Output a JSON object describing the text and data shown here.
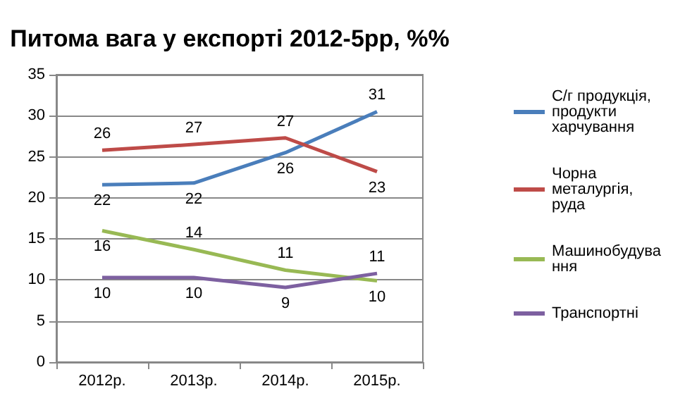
{
  "chart_data": {
    "type": "line",
    "title": "Питома вага у експорті 2012-5рр, %%",
    "categories": [
      "2012р.",
      "2013р.",
      "2014р.",
      "2015р."
    ],
    "series": [
      {
        "name": "С/г продукція, продукти харчування",
        "color": "#4a7ebb",
        "values": [
          21.6,
          21.8,
          25.5,
          30.5
        ],
        "value_labels": [
          "22",
          "22",
          "26",
          "31"
        ]
      },
      {
        "name": "Чорна металургія, руда",
        "color": "#be4b48",
        "values": [
          25.8,
          26.5,
          27.3,
          23.2
        ],
        "value_labels": [
          "26",
          "27",
          "27",
          "23"
        ]
      },
      {
        "name": "Машинобудування",
        "color": "#98b954",
        "values": [
          16.0,
          13.7,
          11.2,
          9.9
        ],
        "value_labels": [
          "16",
          "14",
          "11",
          "10"
        ]
      },
      {
        "name": "Транспортні",
        "color": "#7d60a0",
        "values": [
          10.3,
          10.3,
          9.1,
          10.8
        ],
        "value_labels": [
          "10",
          "10",
          "9",
          "11"
        ]
      }
    ],
    "ylim": [
      0,
      35
    ],
    "yticks": [
      0,
      5,
      10,
      15,
      20,
      25,
      30,
      35
    ],
    "grid": "y",
    "legend": "right",
    "marker": "none",
    "line_style": "solid"
  }
}
